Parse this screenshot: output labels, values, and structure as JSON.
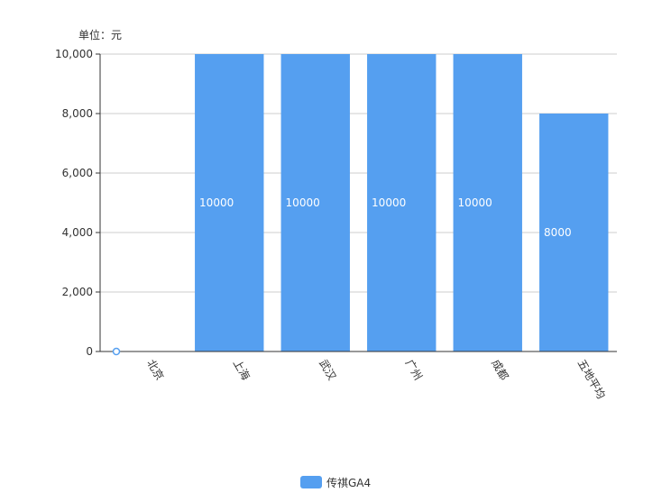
{
  "chart_data": {
    "type": "bar",
    "unit_label": "单位：元",
    "categories": [
      "北京",
      "上海",
      "武汉",
      "广州",
      "成都",
      "五地平均"
    ],
    "series": [
      {
        "name": "传祺GA4",
        "values": [
          0,
          10000,
          10000,
          10000,
          10000,
          8000
        ],
        "value_labels": [
          "",
          "10000",
          "10000",
          "10000",
          "10000",
          "8000"
        ],
        "color": "#559ff0"
      }
    ],
    "ylim": [
      0,
      10000
    ],
    "y_ticks": [
      0,
      2000,
      4000,
      6000,
      8000,
      10000
    ],
    "y_tick_labels": [
      "0",
      "2,000",
      "4,000",
      "6,000",
      "8,000",
      "10,000"
    ],
    "grid": true,
    "legend_position": "bottom-center",
    "colors": {
      "bar": "#559ff0",
      "grid": "#cccccc",
      "axis": "#333333",
      "text": "#333333"
    }
  }
}
